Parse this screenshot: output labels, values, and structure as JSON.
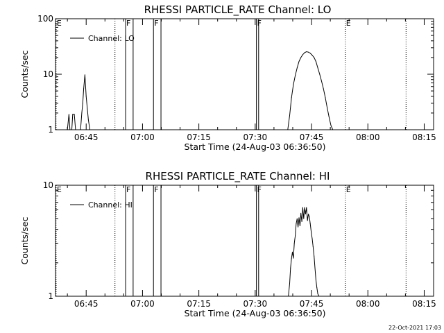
{
  "footer": {
    "timestamp": "22-Oct-2021 17:03"
  },
  "chart_data": [
    {
      "type": "line",
      "title": "RHESSI PARTICLE_RATE Channel: LO",
      "xlabel": "Start Time (24-Aug-03 06:36:50)",
      "ylabel": "Counts/sec",
      "yscale": "log",
      "ylim": [
        1,
        100
      ],
      "yticks": [
        {
          "v": 1,
          "label": "1"
        },
        {
          "v": 10,
          "label": "10"
        },
        {
          "v": 100,
          "label": "100"
        }
      ],
      "xlim": [
        "06:36:50",
        "08:17:30"
      ],
      "xticks": [
        "06:45",
        "07:00",
        "07:15",
        "07:30",
        "07:45",
        "08:00",
        "08:15"
      ],
      "grid": false,
      "legend_position": "top-left",
      "series": [
        {
          "name": "Channel: LO",
          "x": [
            "06:40:00",
            "06:40:25",
            "06:40:40",
            "06:41:10",
            "06:41:25",
            "06:41:50",
            "06:42:10",
            "06:42:25",
            "06:43:30",
            "06:43:50",
            "06:44:05",
            "06:44:20",
            "06:44:40",
            "06:45:00",
            "06:45:35",
            "06:46:00",
            "06:46:20",
            "07:38:40",
            "07:39:10",
            "07:39:40",
            "07:40:10",
            "07:40:40",
            "07:41:10",
            "07:41:40",
            "07:42:10",
            "07:42:40",
            "07:43:10",
            "07:43:40",
            "07:44:10",
            "07:44:40",
            "07:45:10",
            "07:45:40",
            "07:46:10",
            "07:46:40",
            "07:47:10",
            "07:47:40",
            "07:48:10",
            "07:48:40",
            "07:49:10",
            "07:49:40",
            "07:50:10",
            "07:50:40",
            "07:51:10",
            "07:51:40"
          ],
          "y": [
            1,
            1.9,
            1,
            1,
            1.9,
            1.9,
            1,
            1,
            1,
            2,
            3,
            5.5,
            9.8,
            4,
            1.5,
            1,
            1,
            1,
            1.8,
            3.8,
            6.5,
            9.5,
            13,
            17,
            20,
            22.5,
            24.5,
            25.5,
            25,
            24,
            22,
            20,
            17,
            13,
            10,
            7.5,
            5.5,
            3.8,
            2.5,
            1.7,
            1.2,
            1,
            1,
            1
          ]
        }
      ],
      "events": [
        {
          "time": "06:37:00",
          "label": "E",
          "style": "dotted"
        },
        {
          "time": "06:52:40",
          "label": "",
          "style": "dotted"
        },
        {
          "time": "06:55:30",
          "label": "F",
          "style": "solid"
        },
        {
          "time": "06:57:30",
          "label": "",
          "style": "solid"
        },
        {
          "time": "07:02:55",
          "label": "F",
          "style": "solid"
        },
        {
          "time": "07:04:55",
          "label": "",
          "style": "solid"
        },
        {
          "time": "07:30:20",
          "label": "F",
          "style": "solid"
        },
        {
          "time": "07:30:55",
          "label": "",
          "style": "solid"
        },
        {
          "time": "07:54:00",
          "label": "E",
          "style": "dotted"
        },
        {
          "time": "08:10:10",
          "label": "",
          "style": "dotted"
        }
      ]
    },
    {
      "type": "line",
      "title": "RHESSI PARTICLE_RATE Channel: HI",
      "xlabel": "Start Time (24-Aug-03 06:36:50)",
      "ylabel": "Counts/sec",
      "yscale": "log",
      "ylim": [
        1,
        10
      ],
      "yticks": [
        {
          "v": 1,
          "label": "1"
        },
        {
          "v": 10,
          "label": "10"
        }
      ],
      "xlim": [
        "06:36:50",
        "08:17:30"
      ],
      "xticks": [
        "06:45",
        "07:00",
        "07:15",
        "07:30",
        "07:45",
        "08:00",
        "08:15"
      ],
      "grid": false,
      "legend_position": "top-left",
      "series": [
        {
          "name": "Channel: HI",
          "x": [
            "07:38:50",
            "07:39:10",
            "07:39:25",
            "07:39:40",
            "07:39:55",
            "07:40:10",
            "07:40:25",
            "07:40:40",
            "07:40:55",
            "07:41:10",
            "07:41:25",
            "07:41:40",
            "07:41:55",
            "07:42:10",
            "07:42:25",
            "07:42:40",
            "07:42:55",
            "07:43:10",
            "07:43:25",
            "07:43:40",
            "07:43:55",
            "07:44:10",
            "07:44:25",
            "07:44:40",
            "07:44:55",
            "07:45:10",
            "07:45:25",
            "07:45:40",
            "07:45:55",
            "07:46:10",
            "07:46:25",
            "07:46:40",
            "07:47:00"
          ],
          "y": [
            1,
            1.3,
            1.8,
            2.2,
            2.5,
            2.2,
            3,
            3.5,
            4.5,
            5,
            4.2,
            5.1,
            4.3,
            5.6,
            4.7,
            6.3,
            5,
            6.3,
            5.5,
            6.3,
            4.8,
            5.5,
            5.2,
            4.5,
            3.8,
            3.3,
            2.8,
            2.3,
            1.8,
            1.4,
            1.2,
            1.05,
            1
          ]
        }
      ],
      "events": [
        {
          "time": "06:37:00",
          "label": "E",
          "style": "dotted"
        },
        {
          "time": "06:52:40",
          "label": "",
          "style": "dotted"
        },
        {
          "time": "06:55:30",
          "label": "F",
          "style": "solid"
        },
        {
          "time": "06:57:30",
          "label": "",
          "style": "solid"
        },
        {
          "time": "07:02:55",
          "label": "F",
          "style": "solid"
        },
        {
          "time": "07:04:55",
          "label": "",
          "style": "solid"
        },
        {
          "time": "07:30:20",
          "label": "F",
          "style": "solid"
        },
        {
          "time": "07:30:55",
          "label": "",
          "style": "solid"
        },
        {
          "time": "07:54:00",
          "label": "E",
          "style": "dotted"
        },
        {
          "time": "08:10:10",
          "label": "",
          "style": "dotted"
        }
      ]
    }
  ]
}
